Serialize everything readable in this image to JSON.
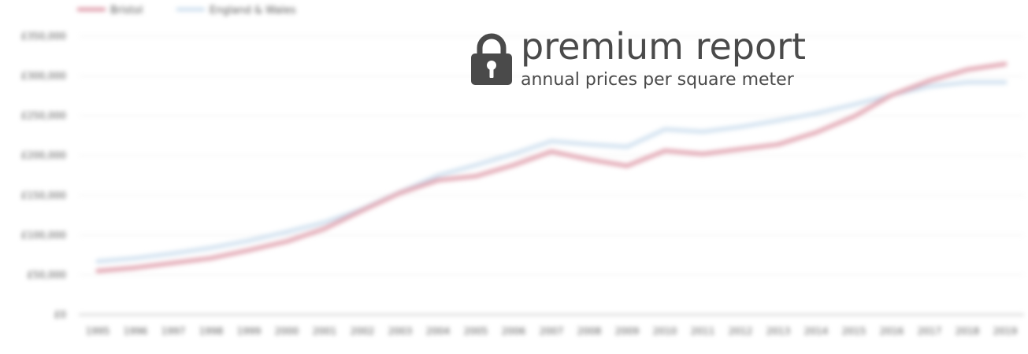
{
  "overlay": {
    "title": "premium report",
    "subtitle": "annual prices per square meter",
    "icon": "lock-icon"
  },
  "chart_data": {
    "type": "line",
    "title": "",
    "xlabel": "",
    "ylabel": "",
    "x": [
      "1995",
      "1996",
      "1997",
      "1998",
      "1999",
      "2000",
      "2001",
      "2002",
      "2003",
      "2004",
      "2005",
      "2006",
      "2007",
      "2008",
      "2009",
      "2010",
      "2011",
      "2012",
      "2013",
      "2014",
      "2015",
      "2016",
      "2017",
      "2018",
      "2019"
    ],
    "y_ticks": [
      "£0",
      "£50,000",
      "£100,000",
      "£150,000",
      "£200,000",
      "£250,000",
      "£300,000",
      "£350,000"
    ],
    "ylim": [
      0,
      350000
    ],
    "grid": true,
    "legend_position": "top-left",
    "series": [
      {
        "name": "Bristol",
        "color": "#e0a0ad",
        "values": [
          55000,
          59000,
          65000,
          71000,
          81000,
          92000,
          108000,
          131000,
          153000,
          169000,
          174000,
          188000,
          205000,
          195000,
          187000,
          206000,
          202000,
          208000,
          214000,
          229000,
          249000,
          276000,
          294000,
          308000,
          315000
        ]
      },
      {
        "name": "England & Wales",
        "color": "#cfe0ef",
        "values": [
          67000,
          71000,
          77000,
          84000,
          93000,
          104000,
          116000,
          133000,
          154000,
          175000,
          188000,
          202000,
          218000,
          214000,
          211000,
          233000,
          230000,
          236000,
          244000,
          253000,
          264000,
          276000,
          287000,
          292000,
          292000
        ]
      }
    ]
  }
}
